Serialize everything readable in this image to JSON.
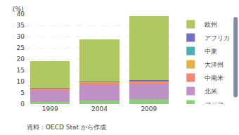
{
  "chart_data": {
    "type": "bar",
    "stacked": true,
    "categories": [
      "1999",
      "2004",
      "2009"
    ],
    "series": [
      {
        "name": "アジア",
        "color": "#90cc80",
        "values": [
          0.8,
          1.5,
          2.2
        ]
      },
      {
        "name": "北米",
        "color": "#c090c8",
        "values": [
          5.0,
          7.0,
          6.5
        ]
      },
      {
        "name": "中南米",
        "color": "#f08878",
        "values": [
          0.8,
          0.9,
          1.0
        ]
      },
      {
        "name": "大洋州",
        "color": "#e8b040",
        "values": [
          0.3,
          0.4,
          0.4
        ]
      },
      {
        "name": "中東",
        "color": "#50b0b0",
        "values": [
          0.1,
          0.1,
          0.2
        ]
      },
      {
        "name": "アフリカ",
        "color": "#7070c0",
        "values": [
          0.2,
          0.2,
          0.3
        ]
      },
      {
        "name": "欧州",
        "color": "#b0c860",
        "values": [
          11.8,
          18.8,
          28.5
        ]
      }
    ],
    "ylabel": "(%)",
    "annotations": [
      "資料：OECD Stat から作成"
    ],
    "ylim": [
      0,
      40
    ],
    "yticks": [
      0,
      5,
      10,
      15,
      20,
      25,
      30,
      35,
      40
    ],
    "grid": true,
    "legend": "right"
  }
}
